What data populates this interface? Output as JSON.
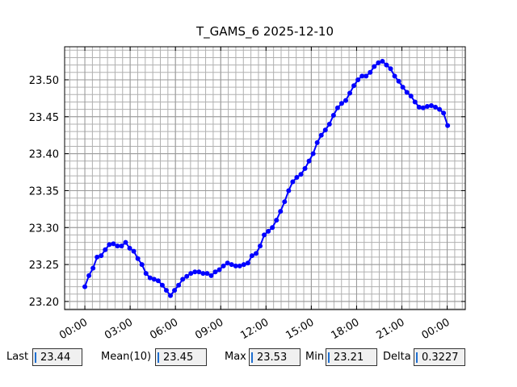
{
  "chart_data": {
    "type": "line",
    "title": "T_GAMS_6 2025-12-10",
    "color": "#0000ff",
    "x": [
      0,
      0.27,
      0.54,
      0.81,
      1.08,
      1.35,
      1.62,
      1.89,
      2.16,
      2.43,
      2.7,
      2.97,
      3.24,
      3.51,
      3.78,
      4.05,
      4.32,
      4.59,
      4.86,
      5.13,
      5.4,
      5.67,
      5.94,
      6.21,
      6.48,
      6.75,
      7.02,
      7.29,
      7.56,
      7.83,
      8.1,
      8.37,
      8.64,
      8.91,
      9.18,
      9.45,
      9.72,
      9.99,
      10.26,
      10.53,
      10.8,
      11.07,
      11.34,
      11.61,
      11.88,
      12.15,
      12.42,
      12.69,
      12.96,
      13.23,
      13.5,
      13.77,
      14.04,
      14.31,
      14.58,
      14.85,
      15.12,
      15.39,
      15.66,
      15.93,
      16.2,
      16.47,
      16.74,
      17.01,
      17.28,
      17.55,
      17.82,
      18.09,
      18.36,
      18.63,
      18.9,
      19.17,
      19.44,
      19.71,
      19.98,
      20.25,
      20.52,
      20.79,
      21.06,
      21.33,
      21.6,
      21.87,
      22.14,
      22.41,
      22.68,
      22.95,
      23.22,
      23.49,
      23.76,
      24.03
    ],
    "values": [
      23.22,
      23.235,
      23.245,
      23.26,
      23.262,
      23.27,
      23.277,
      23.278,
      23.275,
      23.275,
      23.28,
      23.272,
      23.268,
      23.258,
      23.25,
      23.238,
      23.232,
      23.23,
      23.228,
      23.222,
      23.215,
      23.208,
      23.215,
      23.222,
      23.23,
      23.234,
      23.238,
      23.24,
      23.24,
      23.238,
      23.238,
      23.235,
      23.24,
      23.243,
      23.248,
      23.252,
      23.25,
      23.248,
      23.248,
      23.25,
      23.252,
      23.262,
      23.265,
      23.275,
      23.29,
      23.295,
      23.3,
      23.31,
      23.322,
      23.335,
      23.35,
      23.362,
      23.368,
      23.372,
      23.38,
      23.39,
      23.4,
      23.415,
      23.425,
      23.432,
      23.44,
      23.452,
      23.462,
      23.468,
      23.472,
      23.482,
      23.492,
      23.5,
      23.505,
      23.505,
      23.51,
      23.518,
      23.523,
      23.525,
      23.52,
      23.515,
      23.505,
      23.498,
      23.49,
      23.483,
      23.478,
      23.47,
      23.463,
      23.462,
      23.464,
      23.465,
      23.463,
      23.46,
      23.455,
      23.438
    ],
    "xlim": [
      -1.34,
      25.2
    ],
    "ylim": [
      23.189,
      23.5447
    ],
    "xticks": [
      {
        "value": 0,
        "label": "00:00"
      },
      {
        "value": 3,
        "label": "03:00"
      },
      {
        "value": 6,
        "label": "06:00"
      },
      {
        "value": 9,
        "label": "09:00"
      },
      {
        "value": 12,
        "label": "12:00"
      },
      {
        "value": 15,
        "label": "15:00"
      },
      {
        "value": 18,
        "label": "18:00"
      },
      {
        "value": 21,
        "label": "21:00"
      },
      {
        "value": 24,
        "label": "00:00"
      }
    ],
    "yticks": [
      {
        "value": 23.2,
        "label": "23.20"
      },
      {
        "value": 23.25,
        "label": "23.25"
      },
      {
        "value": 23.3,
        "label": "23.30"
      },
      {
        "value": 23.35,
        "label": "23.35"
      },
      {
        "value": 23.4,
        "label": "23.40"
      },
      {
        "value": 23.45,
        "label": "23.45"
      },
      {
        "value": 23.5,
        "label": "23.50"
      }
    ],
    "grid": true,
    "minor_step": [
      0.5,
      0.01
    ]
  },
  "stats": [
    {
      "label": "Last",
      "value": "23.44"
    },
    {
      "label": "Mean(10)",
      "value": "23.45"
    },
    {
      "label": "Max",
      "value": "23.53"
    },
    {
      "label": "Min",
      "value": "23.21"
    },
    {
      "label": "Delta",
      "value": "0.3227"
    }
  ]
}
